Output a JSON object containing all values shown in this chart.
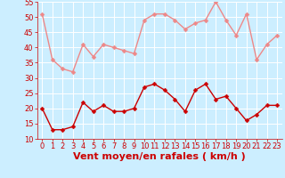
{
  "x": [
    0,
    1,
    2,
    3,
    4,
    5,
    6,
    7,
    8,
    9,
    10,
    11,
    12,
    13,
    14,
    15,
    16,
    17,
    18,
    19,
    20,
    21,
    22,
    23
  ],
  "vent_moyen": [
    20,
    13,
    13,
    14,
    22,
    19,
    21,
    19,
    19,
    20,
    27,
    28,
    26,
    23,
    19,
    26,
    28,
    23,
    24,
    20,
    16,
    18,
    21,
    21
  ],
  "vent_rafales": [
    51,
    36,
    33,
    32,
    41,
    37,
    41,
    40,
    39,
    38,
    49,
    51,
    51,
    49,
    46,
    48,
    49,
    55,
    49,
    44,
    51,
    36,
    41,
    44
  ],
  "xlabel": "Vent moyen/en rafales ( km/h )",
  "xlim_min": -0.5,
  "xlim_max": 23.5,
  "ylim_min": 10,
  "ylim_max": 55,
  "yticks": [
    10,
    15,
    20,
    25,
    30,
    35,
    40,
    45,
    50,
    55
  ],
  "xticks": [
    0,
    1,
    2,
    3,
    4,
    5,
    6,
    7,
    8,
    9,
    10,
    11,
    12,
    13,
    14,
    15,
    16,
    17,
    18,
    19,
    20,
    21,
    22,
    23
  ],
  "color_moyen": "#cc0000",
  "color_rafales": "#ee8888",
  "bg_color": "#cceeff",
  "grid_color": "#ffffff",
  "markersize": 2.5,
  "linewidth": 1.0,
  "xlabel_fontsize": 8,
  "tick_fontsize": 6
}
